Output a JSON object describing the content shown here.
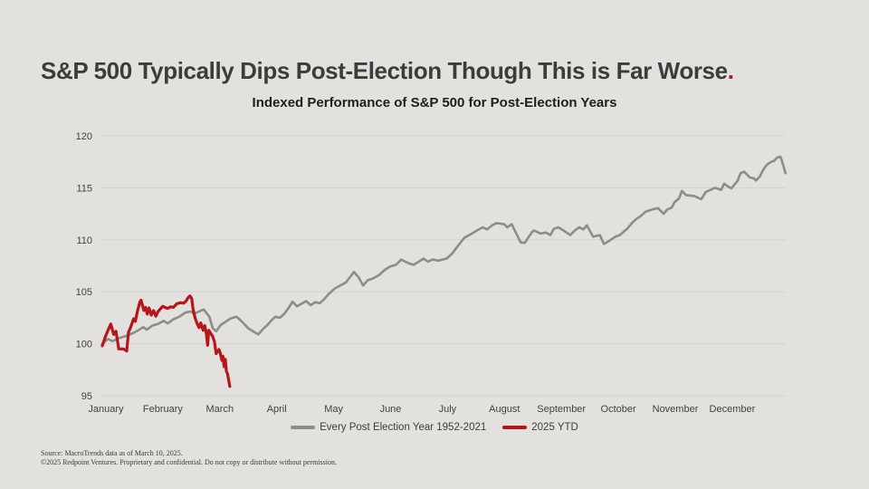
{
  "page": {
    "title_text": "S&P 500 Typically Dips Post-Election Though This is Far Worse",
    "title_period": ".",
    "source_line1": "Source: MacroTrends data as of March 10, 2025.",
    "source_line2": "©2025 Redpoint Ventures. Proprietary and confidential. Do not copy or distribute without permission."
  },
  "colors": {
    "background": "#e3e1dd",
    "title_text": "#3d3b3c",
    "accent_red": "#b5151b",
    "gray_line": "#8e8c89",
    "gridline": "#d5d3cf",
    "axis_text": "#413f3e"
  },
  "chart_data": {
    "type": "line",
    "title": "Indexed Performance of S&P 500 for Post-Election Years",
    "x_unit": "months (0 = Jan 1, 12 = Dec 31)",
    "categories": [
      "January",
      "February",
      "March",
      "April",
      "May",
      "June",
      "July",
      "August",
      "September",
      "October",
      "November",
      "December"
    ],
    "ylim": [
      95,
      120
    ],
    "yticks": [
      95,
      100,
      105,
      110,
      115,
      120
    ],
    "grid": "horizontal",
    "legend_position": "bottom-center",
    "series": [
      {
        "name": "Every Post Election Year 1952-2021",
        "color": "#8e8c89",
        "width": 2.6,
        "points": [
          [
            0.0,
            100.0
          ],
          [
            0.1,
            100.45
          ],
          [
            0.18,
            100.25
          ],
          [
            0.3,
            100.55
          ],
          [
            0.42,
            100.75
          ],
          [
            0.55,
            101.05
          ],
          [
            0.65,
            101.35
          ],
          [
            0.72,
            101.6
          ],
          [
            0.78,
            101.35
          ],
          [
            0.88,
            101.75
          ],
          [
            0.98,
            101.9
          ],
          [
            1.08,
            102.2
          ],
          [
            1.15,
            101.95
          ],
          [
            1.25,
            102.35
          ],
          [
            1.35,
            102.6
          ],
          [
            1.46,
            103.0
          ],
          [
            1.55,
            103.1
          ],
          [
            1.62,
            102.9
          ],
          [
            1.7,
            103.1
          ],
          [
            1.78,
            103.3
          ],
          [
            1.88,
            102.6
          ],
          [
            1.94,
            101.5
          ],
          [
            2.0,
            101.2
          ],
          [
            2.08,
            101.8
          ],
          [
            2.16,
            102.1
          ],
          [
            2.26,
            102.45
          ],
          [
            2.36,
            102.6
          ],
          [
            2.46,
            102.1
          ],
          [
            2.56,
            101.5
          ],
          [
            2.66,
            101.15
          ],
          [
            2.74,
            100.9
          ],
          [
            2.82,
            101.4
          ],
          [
            2.9,
            101.8
          ],
          [
            2.98,
            102.3
          ],
          [
            3.04,
            102.6
          ],
          [
            3.12,
            102.5
          ],
          [
            3.2,
            102.9
          ],
          [
            3.28,
            103.5
          ],
          [
            3.34,
            104.05
          ],
          [
            3.42,
            103.6
          ],
          [
            3.5,
            103.85
          ],
          [
            3.58,
            104.1
          ],
          [
            3.66,
            103.7
          ],
          [
            3.74,
            104.0
          ],
          [
            3.82,
            103.9
          ],
          [
            3.9,
            104.3
          ],
          [
            3.98,
            104.8
          ],
          [
            4.08,
            105.3
          ],
          [
            4.18,
            105.6
          ],
          [
            4.28,
            105.9
          ],
          [
            4.35,
            106.4
          ],
          [
            4.42,
            106.9
          ],
          [
            4.5,
            106.4
          ],
          [
            4.58,
            105.6
          ],
          [
            4.66,
            106.1
          ],
          [
            4.76,
            106.3
          ],
          [
            4.86,
            106.6
          ],
          [
            4.96,
            107.1
          ],
          [
            5.06,
            107.45
          ],
          [
            5.16,
            107.6
          ],
          [
            5.25,
            108.1
          ],
          [
            5.32,
            107.9
          ],
          [
            5.4,
            107.7
          ],
          [
            5.47,
            107.6
          ],
          [
            5.56,
            107.9
          ],
          [
            5.64,
            108.2
          ],
          [
            5.72,
            107.9
          ],
          [
            5.8,
            108.1
          ],
          [
            5.9,
            108.0
          ],
          [
            6.05,
            108.2
          ],
          [
            6.15,
            108.7
          ],
          [
            6.23,
            109.3
          ],
          [
            6.36,
            110.2
          ],
          [
            6.46,
            110.5
          ],
          [
            6.58,
            110.9
          ],
          [
            6.68,
            111.2
          ],
          [
            6.76,
            111.0
          ],
          [
            6.85,
            111.4
          ],
          [
            6.92,
            111.6
          ],
          [
            7.0,
            111.55
          ],
          [
            7.06,
            111.5
          ],
          [
            7.11,
            111.2
          ],
          [
            7.19,
            111.5
          ],
          [
            7.28,
            110.5
          ],
          [
            7.35,
            109.75
          ],
          [
            7.42,
            109.7
          ],
          [
            7.54,
            110.7
          ],
          [
            7.58,
            110.9
          ],
          [
            7.7,
            110.6
          ],
          [
            7.79,
            110.7
          ],
          [
            7.87,
            110.45
          ],
          [
            7.93,
            111.05
          ],
          [
            8.01,
            111.2
          ],
          [
            8.1,
            110.9
          ],
          [
            8.22,
            110.45
          ],
          [
            8.3,
            110.9
          ],
          [
            8.38,
            111.2
          ],
          [
            8.45,
            111.0
          ],
          [
            8.51,
            111.4
          ],
          [
            8.62,
            110.3
          ],
          [
            8.74,
            110.45
          ],
          [
            8.81,
            109.6
          ],
          [
            8.89,
            109.85
          ],
          [
            9.01,
            110.3
          ],
          [
            9.09,
            110.45
          ],
          [
            9.14,
            110.7
          ],
          [
            9.22,
            111.05
          ],
          [
            9.3,
            111.6
          ],
          [
            9.38,
            112.0
          ],
          [
            9.46,
            112.3
          ],
          [
            9.54,
            112.7
          ],
          [
            9.65,
            112.9
          ],
          [
            9.76,
            113.05
          ],
          [
            9.86,
            112.5
          ],
          [
            9.92,
            112.9
          ],
          [
            10.0,
            113.1
          ],
          [
            10.05,
            113.6
          ],
          [
            10.13,
            114.0
          ],
          [
            10.18,
            114.7
          ],
          [
            10.25,
            114.3
          ],
          [
            10.4,
            114.2
          ],
          [
            10.52,
            113.9
          ],
          [
            10.6,
            114.6
          ],
          [
            10.68,
            114.8
          ],
          [
            10.76,
            115.0
          ],
          [
            10.87,
            114.8
          ],
          [
            10.92,
            115.4
          ],
          [
            11.0,
            115.1
          ],
          [
            11.05,
            114.95
          ],
          [
            11.16,
            115.7
          ],
          [
            11.21,
            116.4
          ],
          [
            11.27,
            116.55
          ],
          [
            11.32,
            116.3
          ],
          [
            11.37,
            116.0
          ],
          [
            11.45,
            115.9
          ],
          [
            11.48,
            115.7
          ],
          [
            11.55,
            116.1
          ],
          [
            11.59,
            116.55
          ],
          [
            11.64,
            117.0
          ],
          [
            11.69,
            117.3
          ],
          [
            11.75,
            117.5
          ],
          [
            11.8,
            117.6
          ],
          [
            11.85,
            117.9
          ],
          [
            11.91,
            118.0
          ],
          [
            11.93,
            117.7
          ],
          [
            12.0,
            116.4
          ]
        ]
      },
      {
        "name": "2025 YTD",
        "color": "#b5151b",
        "width": 3.2,
        "points": [
          [
            0.0,
            99.8
          ],
          [
            0.05,
            100.6
          ],
          [
            0.1,
            101.3
          ],
          [
            0.15,
            101.9
          ],
          [
            0.2,
            100.9
          ],
          [
            0.24,
            101.2
          ],
          [
            0.29,
            99.5
          ],
          [
            0.37,
            99.5
          ],
          [
            0.43,
            99.3
          ],
          [
            0.46,
            101.1
          ],
          [
            0.5,
            101.6
          ],
          [
            0.55,
            102.4
          ],
          [
            0.58,
            102.15
          ],
          [
            0.62,
            103.2
          ],
          [
            0.66,
            104.0
          ],
          [
            0.68,
            104.2
          ],
          [
            0.71,
            103.6
          ],
          [
            0.73,
            103.2
          ],
          [
            0.76,
            103.5
          ],
          [
            0.79,
            102.85
          ],
          [
            0.82,
            103.45
          ],
          [
            0.86,
            102.75
          ],
          [
            0.9,
            103.2
          ],
          [
            0.94,
            102.65
          ],
          [
            0.98,
            103.1
          ],
          [
            1.02,
            103.35
          ],
          [
            1.06,
            103.6
          ],
          [
            1.1,
            103.5
          ],
          [
            1.15,
            103.4
          ],
          [
            1.2,
            103.55
          ],
          [
            1.25,
            103.5
          ],
          [
            1.31,
            103.85
          ],
          [
            1.37,
            103.95
          ],
          [
            1.43,
            103.9
          ],
          [
            1.47,
            104.1
          ],
          [
            1.51,
            104.45
          ],
          [
            1.54,
            104.6
          ],
          [
            1.57,
            104.35
          ],
          [
            1.59,
            103.5
          ],
          [
            1.61,
            102.9
          ],
          [
            1.64,
            102.3
          ],
          [
            1.67,
            101.9
          ],
          [
            1.7,
            101.55
          ],
          [
            1.73,
            102.0
          ],
          [
            1.77,
            101.3
          ],
          [
            1.8,
            101.75
          ],
          [
            1.83,
            100.9
          ],
          [
            1.85,
            99.85
          ],
          [
            1.87,
            101.3
          ],
          [
            1.94,
            100.7
          ],
          [
            1.97,
            100.2
          ],
          [
            2.0,
            99.05
          ],
          [
            2.05,
            99.45
          ],
          [
            2.07,
            99.15
          ],
          [
            2.1,
            98.4
          ],
          [
            2.12,
            98.8
          ],
          [
            2.14,
            97.8
          ],
          [
            2.16,
            98.5
          ],
          [
            2.18,
            97.35
          ],
          [
            2.2,
            97.1
          ],
          [
            2.22,
            96.5
          ],
          [
            2.24,
            95.9
          ]
        ]
      }
    ]
  }
}
